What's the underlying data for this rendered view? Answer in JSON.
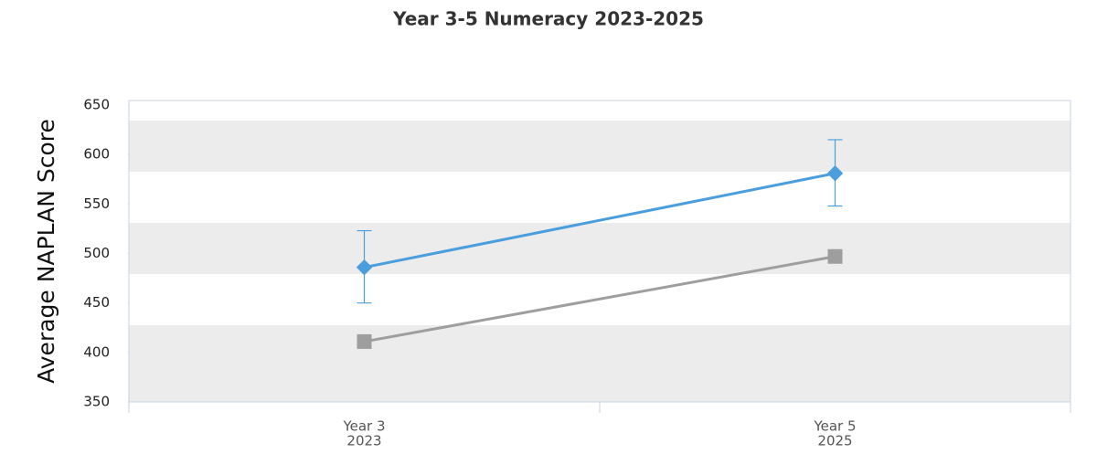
{
  "chart_data": {
    "type": "line",
    "title": "Year 3-5 Numeracy 2023-2025",
    "y_label": "Average NAPLAN Score",
    "categories": [
      [
        "Year 3",
        "2023"
      ],
      [
        "Year 5",
        "2025"
      ]
    ],
    "series": [
      {
        "color": "#4a9edb",
        "marker": "diamond",
        "values": [
          486,
          581
        ],
        "error_low": [
          450,
          548
        ],
        "error_high": [
          523,
          615
        ]
      },
      {
        "color": "#9e9e9e",
        "marker": "square",
        "values": [
          411,
          497
        ]
      }
    ],
    "ylim": [
      350,
      650
    ],
    "yticks": [
      350,
      400,
      450,
      500,
      550,
      600,
      650
    ]
  }
}
